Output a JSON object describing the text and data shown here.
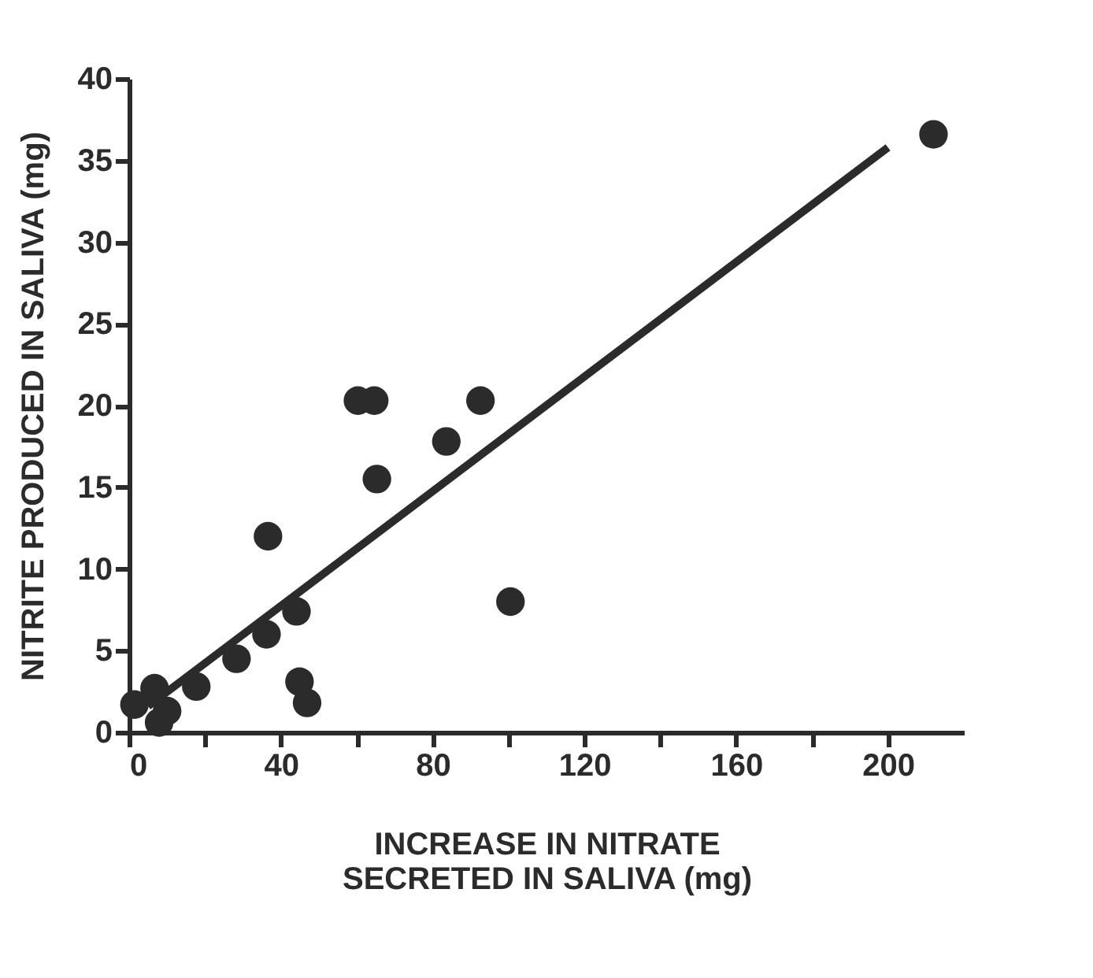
{
  "chart_data": {
    "type": "scatter",
    "xlabel": "INCREASE IN NITRATE\nSECRETED IN SALIVA (mg)",
    "ylabel": "NITRITE PRODUCED IN SALIVA (mg)",
    "xlim": [
      0,
      220
    ],
    "xticks": [
      0,
      {
        "value": 20,
        "label": null
      },
      40,
      {
        "value": 60,
        "label": null
      },
      80,
      {
        "value": 100,
        "label": null
      },
      120,
      {
        "value": 140,
        "label": null
      },
      160,
      {
        "value": 180,
        "label": null
      },
      200
    ],
    "ylim": [
      0,
      40
    ],
    "yticks": [
      0,
      5,
      10,
      15,
      20,
      25,
      30,
      35,
      40
    ],
    "grid": false,
    "marker": "circle",
    "series": [
      {
        "color": "#2b2b2b",
        "x": [
          212,
          60.3,
          64.6,
          92.6,
          83.6,
          65.3,
          36.6,
          100.5,
          44.1,
          36.2,
          28.3,
          17.7,
          44.9,
          46.9,
          6.7,
          10.0,
          1.4,
          7.9
        ],
        "values": [
          36.6,
          20.3,
          20.3,
          20.3,
          17.8,
          15.5,
          12.0,
          8.0,
          7.4,
          6.0,
          4.5,
          2.8,
          3.1,
          1.8,
          2.7,
          1.3,
          1.7,
          0.6
        ]
      },
      {
        "type": "line",
        "color": "#2b2b2b",
        "x": [
          5,
          200
        ],
        "values": [
          1.6,
          35.8
        ],
        "line_style": "solid",
        "marker": "none"
      }
    ]
  }
}
